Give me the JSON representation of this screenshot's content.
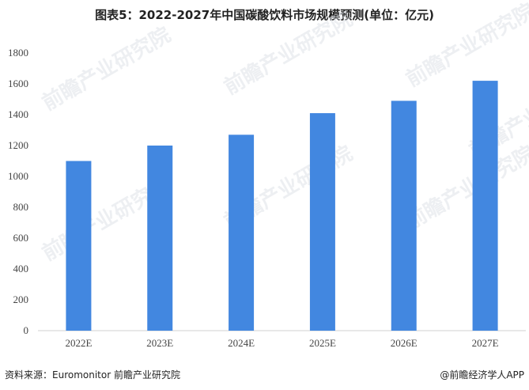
{
  "chart_data": {
    "type": "bar",
    "title": "图表5：2022-2027年中国碳酸饮料市场规模预测(单位：亿元)",
    "categories": [
      "2022E",
      "2023E",
      "2024E",
      "2025E",
      "2026E",
      "2027E"
    ],
    "values": [
      1100,
      1200,
      1270,
      1410,
      1490,
      1620
    ],
    "ylim": [
      0,
      1800
    ],
    "yticks": [
      "0",
      "200",
      "400",
      "600",
      "800",
      "1000",
      "1200",
      "1400",
      "1600",
      "1800"
    ],
    "xlabel": "",
    "ylabel": "",
    "grid": false,
    "bar_color": "#4287e0"
  },
  "footer": {
    "source": "资料来源：Euromonitor 前瞻产业研究院",
    "credit": "@前瞻经济学人APP"
  },
  "watermark": "前瞻产业研究院"
}
